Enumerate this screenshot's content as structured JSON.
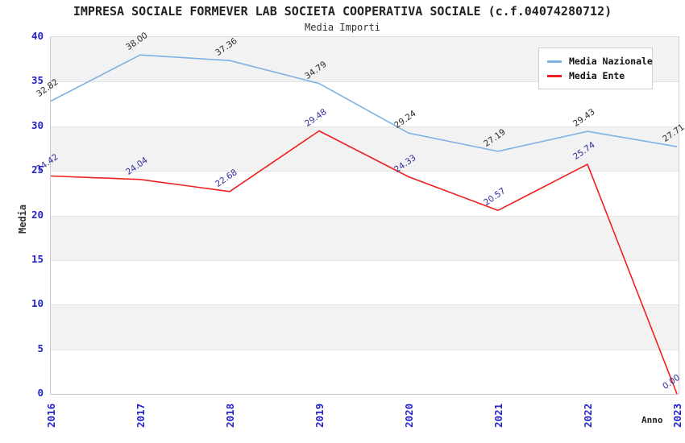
{
  "chart_data": {
    "type": "line",
    "title": "IMPRESA SOCIALE FORMEVER LAB SOCIETA COOPERATIVA SOCIALE (c.f.04074280712)",
    "subtitle": "Media Importi",
    "xlabel": "Anno",
    "ylabel": "Media",
    "x": [
      2016,
      2017,
      2018,
      2019,
      2020,
      2021,
      2022,
      2023
    ],
    "series": [
      {
        "name": "Media Nazionale",
        "color": "#7db2e5",
        "label_color": "#2b2b2b",
        "values": [
          32.82,
          38.0,
          37.36,
          34.79,
          29.24,
          27.19,
          29.43,
          27.71
        ]
      },
      {
        "name": "Media Ente",
        "color": "#ee2020",
        "label_color": "#2e2e9e",
        "values": [
          24.42,
          24.04,
          22.68,
          29.48,
          24.33,
          20.57,
          25.74,
          0.0
        ]
      }
    ],
    "ylim": [
      0,
      40
    ],
    "ytick_step": 5,
    "yticks": [
      0,
      5,
      10,
      15,
      20,
      25,
      30,
      35,
      40
    ],
    "grid": "horizontal-bands",
    "legend_position": "top-right",
    "value_decimals": 2
  },
  "palette": {
    "tick_color": "#2323cc",
    "band_color": "#f2f2f2",
    "grid_color": "#e3e3e3",
    "axis_text_color": "#222222",
    "legend_border": "#cfcfcf"
  }
}
